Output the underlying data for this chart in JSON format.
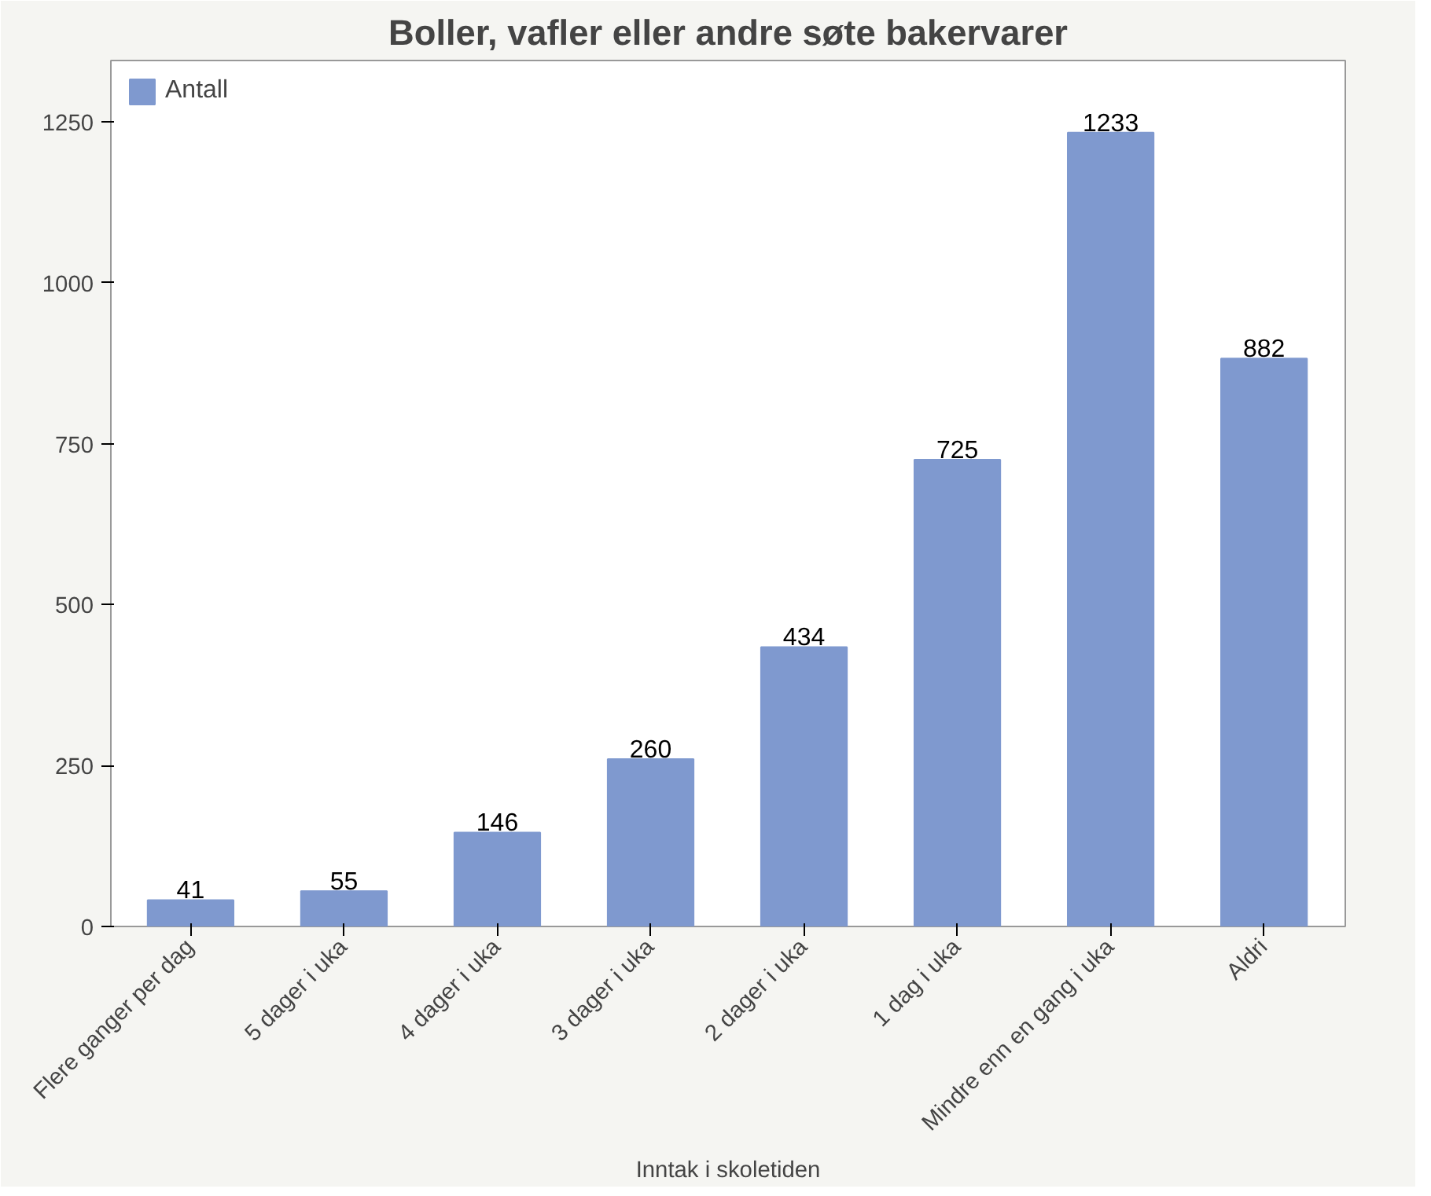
{
  "chart_data": {
    "type": "bar",
    "title": "Boller, vafler eller andre søte bakervarer",
    "xlabel": "Inntak i skoletiden",
    "categories": [
      "Flere ganger per dag",
      "5 dager i uka",
      "4 dager i uka",
      "3 dager i uka",
      "2 dager i uka",
      "1 dag i uka",
      "Mindre enn en gang i uka",
      "Aldri"
    ],
    "series": [
      {
        "name": "Antall",
        "color": "#7f99cf",
        "values": [
          41,
          55,
          146,
          260,
          434,
          725,
          1233,
          882
        ]
      }
    ],
    "ylim": [
      0,
      1345
    ],
    "yticks": [
      0,
      250,
      500,
      750,
      1000,
      1250
    ],
    "data_labels": true,
    "grid": false,
    "legend": "top left"
  }
}
